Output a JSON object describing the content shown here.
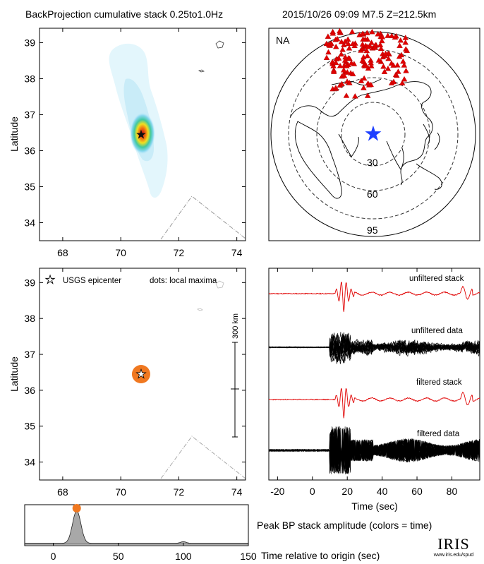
{
  "header": {
    "title_left": "BackProjection cumulative stack 0.25to1.0Hz",
    "title_right": "2015/10/26 09:09  M7.5  Z=212.5km"
  },
  "map_top": {
    "ylabel": "Latitude",
    "xticks": [
      68,
      70,
      72,
      74
    ],
    "yticks": [
      34,
      35,
      36,
      37,
      38,
      39
    ],
    "xlim": [
      67.2,
      74.3
    ],
    "ylim": [
      33.5,
      39.4
    ],
    "epicenter": {
      "lon": 70.7,
      "lat": 36.45
    }
  },
  "map_bottom": {
    "ylabel": "Latitude",
    "xticks": [
      68,
      70,
      72,
      74
    ],
    "yticks": [
      34,
      35,
      36,
      37,
      38,
      39
    ],
    "xlim": [
      67.2,
      74.3
    ],
    "ylim": [
      33.5,
      39.4
    ],
    "legend_star": "USGS epicenter",
    "legend_dots": "dots: local maxima",
    "scale_label": "300 km",
    "epicenter": {
      "lon": 70.7,
      "lat": 36.45
    },
    "maximum": {
      "lon": 70.7,
      "lat": 36.45
    },
    "dot_color": "#f07820"
  },
  "globe": {
    "array_label": "NA",
    "ring_labels": [
      "30",
      "60",
      "95"
    ],
    "star_color": "#1e40ff",
    "station_color": "#e00000"
  },
  "traces": {
    "labels": [
      "unfiltered stack",
      "unfiltered data",
      "filtered stack",
      "filtered data"
    ],
    "xlabel": "Time (sec)",
    "xticks": [
      -20,
      0,
      20,
      40,
      60,
      80
    ],
    "xlim": [
      -25,
      96
    ]
  },
  "peak_label": "Peak BP stack amplitude (colors = time)",
  "timeline": {
    "xticks": [
      0,
      50,
      100,
      150
    ],
    "xlim": [
      -22,
      150
    ],
    "xlabel": "Time relative to origin (sec)",
    "peak_time": 18,
    "dot_color": "#f07820"
  },
  "logo": {
    "text": "IRIS",
    "url": "www.iris.edu/spud"
  },
  "chart_data": [
    {
      "type": "heatmap",
      "title": "BackProjection cumulative stack 0.25to1.0Hz",
      "xlabel": "",
      "ylabel": "Latitude",
      "xlim": [
        67.2,
        74.3
      ],
      "ylim": [
        33.5,
        39.4
      ],
      "peak": {
        "lon": 70.7,
        "lat": 36.45
      }
    },
    {
      "type": "scatter",
      "ylabel": "Latitude",
      "points": [
        {
          "lon": 70.7,
          "lat": 36.45,
          "label": "local maximum"
        }
      ],
      "epicenter": {
        "lon": 70.7,
        "lat": 36.45
      }
    },
    {
      "type": "line",
      "xlabel": "Time (sec)",
      "xlim": [
        -25,
        96
      ],
      "series": [
        {
          "name": "unfiltered stack"
        },
        {
          "name": "unfiltered data"
        },
        {
          "name": "filtered stack"
        },
        {
          "name": "filtered data"
        }
      ]
    },
    {
      "type": "area",
      "title": "Peak BP stack amplitude (colors = time)",
      "xlabel": "Time relative to origin (sec)",
      "xlim": [
        -22,
        150
      ],
      "peak_time": 18,
      "secondary_bump_time": 100
    }
  ]
}
